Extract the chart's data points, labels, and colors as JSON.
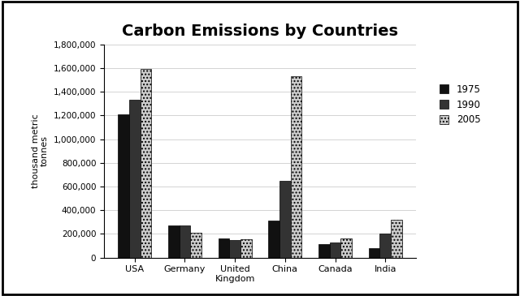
{
  "title": "Carbon Emissions by Countries",
  "ylabel": "thousand metric\ntonnes",
  "categories": [
    "USA",
    "Germany",
    "United\nKingdom",
    "China",
    "Canada",
    "India"
  ],
  "series": [
    {
      "label": "1975",
      "color": "#111111",
      "hatch": "",
      "values": [
        1210000,
        270000,
        160000,
        310000,
        115000,
        80000
      ]
    },
    {
      "label": "1990",
      "color": "#333333",
      "hatch": "",
      "values": [
        1330000,
        270000,
        150000,
        650000,
        130000,
        200000
      ]
    },
    {
      "label": "2005",
      "color": "#cccccc",
      "hatch": "....",
      "values": [
        1590000,
        210000,
        155000,
        1530000,
        160000,
        320000
      ]
    }
  ],
  "ylim": [
    0,
    1800000
  ],
  "yticks": [
    0,
    200000,
    400000,
    600000,
    800000,
    1000000,
    1200000,
    1400000,
    1600000,
    1800000
  ],
  "bar_width": 0.22,
  "background_color": "#ffffff",
  "title_fontsize": 14,
  "border_color": "#000000"
}
